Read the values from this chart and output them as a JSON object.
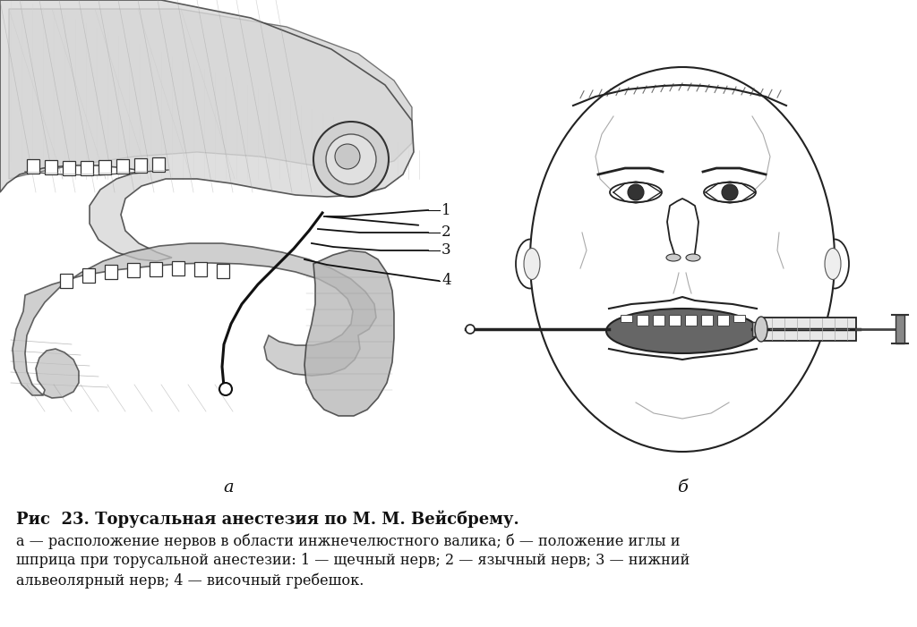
{
  "background_color": "#ffffff",
  "title_line1": "Рис  23. Торусальная анестезия по М. М. Вейсбрему.",
  "caption_line1": "а — расположение нервов в области инжнечелюстного валика; б — положение иглы и",
  "caption_line2": "шприца при торусальной анестезии: 1 — щечный нерв; 2 — язычный нерв; 3 — нижний",
  "caption_line3": "альвеолярный нерв; 4 — височный гребешок.",
  "label_a": "а",
  "label_b": "б",
  "labels_1234": [
    "1",
    "2",
    "3",
    "4"
  ],
  "font_size_title": 13,
  "font_size_caption": 11.5,
  "font_size_labels": 12
}
